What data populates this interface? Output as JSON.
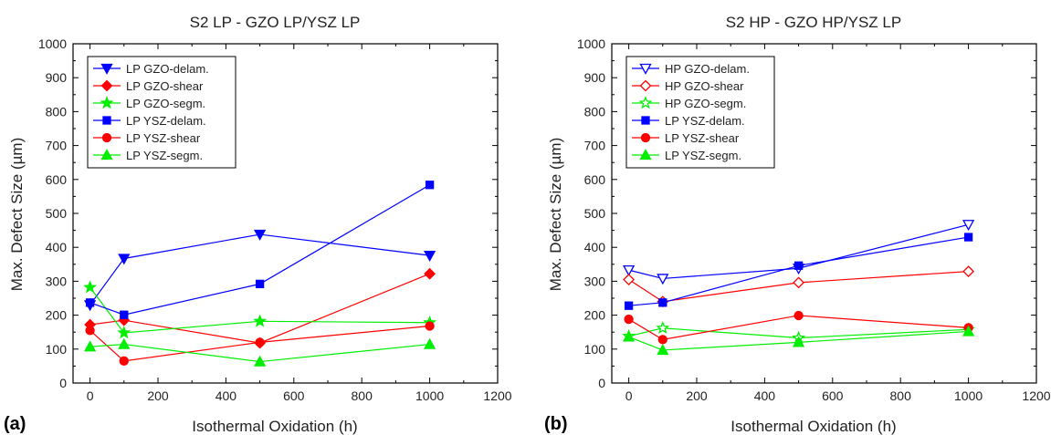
{
  "chart_data": [
    {
      "type": "line",
      "panel_label": "(a)",
      "title": "S2 LP - GZO LP/YSZ LP",
      "xlabel": "Isothermal Oxidation (h)",
      "ylabel": "Max. Defect Size (µm)",
      "xlim": [
        -50,
        1200
      ],
      "ylim": [
        0,
        1000
      ],
      "xticks": [
        "0",
        "200",
        "400",
        "600",
        "800",
        "1000",
        "1200"
      ],
      "yticks": [
        "0",
        "100",
        "200",
        "300",
        "400",
        "500",
        "600",
        "700",
        "800",
        "900",
        "1000"
      ],
      "grid": false,
      "legend_position": "top-left",
      "x": [
        0,
        100,
        500,
        1000
      ],
      "series": [
        {
          "name": "LP GZO-delam.",
          "values": [
            230,
            367,
            438,
            376
          ],
          "color": "#0000ff",
          "marker": "triangle-down",
          "filled": true
        },
        {
          "name": "LP GZO-shear",
          "values": [
            172,
            185,
            118,
            322
          ],
          "color": "#ff0000",
          "marker": "diamond",
          "filled": true
        },
        {
          "name": "LP GZO-segm.",
          "values": [
            282,
            148,
            182,
            178
          ],
          "color": "#00ee00",
          "marker": "star",
          "filled": true
        },
        {
          "name": "LP YSZ-delam.",
          "values": [
            237,
            201,
            292,
            584
          ],
          "color": "#0000ff",
          "marker": "square",
          "filled": true
        },
        {
          "name": "LP YSZ-shear",
          "values": [
            155,
            65,
            120,
            168
          ],
          "color": "#ff0000",
          "marker": "circle",
          "filled": true
        },
        {
          "name": "LP YSZ-segm.",
          "values": [
            107,
            114,
            63,
            114
          ],
          "color": "#00ee00",
          "marker": "triangle-up",
          "filled": true
        }
      ]
    },
    {
      "type": "line",
      "panel_label": "(b)",
      "title": "S2 HP - GZO HP/YSZ LP",
      "xlabel": "Isothermal Oxidation (h)",
      "ylabel": "Max. Defect Size (µm)",
      "xlim": [
        -50,
        1200
      ],
      "ylim": [
        0,
        1000
      ],
      "xticks": [
        "0",
        "200",
        "400",
        "600",
        "800",
        "1000",
        "1200"
      ],
      "yticks": [
        "0",
        "100",
        "200",
        "300",
        "400",
        "500",
        "600",
        "700",
        "800",
        "900",
        "1000"
      ],
      "grid": false,
      "legend_position": "top-left",
      "x": [
        0,
        100,
        500,
        1000
      ],
      "series": [
        {
          "name": "HP GZO-delam.",
          "values": [
            333,
            308,
            338,
            467
          ],
          "color": "#0000ff",
          "marker": "triangle-down",
          "filled": false
        },
        {
          "name": "HP GZO-shear",
          "values": [
            305,
            240,
            296,
            329
          ],
          "color": "#ff0000",
          "marker": "diamond",
          "filled": false
        },
        {
          "name": "HP GZO-segm.",
          "values": [
            138,
            162,
            133,
            158
          ],
          "color": "#00ee00",
          "marker": "star",
          "filled": false
        },
        {
          "name": "LP YSZ-delam.",
          "values": [
            228,
            237,
            346,
            430
          ],
          "color": "#0000ff",
          "marker": "square",
          "filled": true
        },
        {
          "name": "LP YSZ-shear",
          "values": [
            188,
            128,
            199,
            163
          ],
          "color": "#ff0000",
          "marker": "circle",
          "filled": true
        },
        {
          "name": "LP YSZ-segm.",
          "values": [
            136,
            97,
            120,
            152
          ],
          "color": "#00ee00",
          "marker": "triangle-up",
          "filled": true
        }
      ]
    }
  ]
}
